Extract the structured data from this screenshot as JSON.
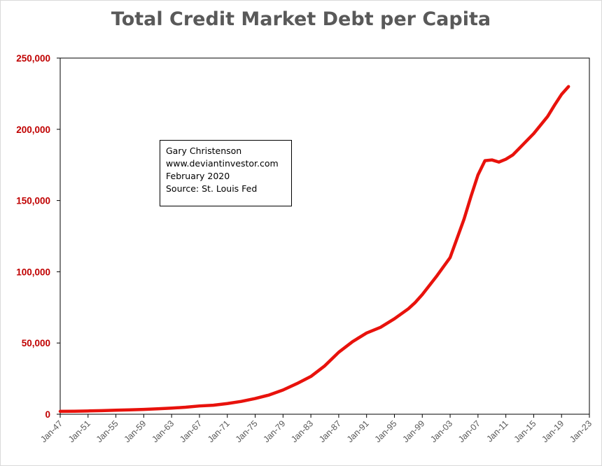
{
  "chart_data": {
    "type": "line",
    "title": "Total Credit Market Debt per Capita",
    "xlabel": "",
    "ylabel": "",
    "ylim": [
      0,
      250000
    ],
    "y_ticks": [
      "0",
      "50,000",
      "100,000",
      "150,000",
      "200,000",
      "250,000"
    ],
    "y_tick_values": [
      0,
      50000,
      100000,
      150000,
      200000,
      250000
    ],
    "x_ticks": [
      "Jan-47",
      "Jan-51",
      "Jan-55",
      "Jan-59",
      "Jan-63",
      "Jan-67",
      "Jan-71",
      "Jan-75",
      "Jan-79",
      "Jan-83",
      "Jan-87",
      "Jan-91",
      "Jan-95",
      "Jan-99",
      "Jan-03",
      "Jan-07",
      "Jan-11",
      "Jan-15",
      "Jan-19",
      "Jan-23"
    ],
    "x_tick_years": [
      1947,
      1951,
      1955,
      1959,
      1963,
      1967,
      1971,
      1975,
      1979,
      1983,
      1987,
      1991,
      1995,
      1999,
      2003,
      2007,
      2011,
      2015,
      2019,
      2023
    ],
    "xlim": [
      1947,
      2023
    ],
    "grid": false,
    "series_color": "#e8120c",
    "tick_label_color_y": "#c00000",
    "tick_label_color_x": "#595959",
    "series": [
      {
        "x": [
          1947,
          1949,
          1951,
          1953,
          1955,
          1957,
          1959,
          1961,
          1963,
          1965,
          1967,
          1969,
          1971,
          1973,
          1975,
          1977,
          1979,
          1981,
          1983,
          1985,
          1987,
          1989,
          1991,
          1993,
          1995,
          1997,
          1998,
          1999,
          2001,
          2003,
          2005,
          2006,
          2007,
          2008,
          2009,
          2010,
          2011,
          2012,
          2013,
          2015,
          2017,
          2018,
          2019,
          2020
        ],
        "y": [
          2000,
          2100,
          2300,
          2500,
          2800,
          3100,
          3400,
          3800,
          4300,
          4900,
          5800,
          6300,
          7500,
          9000,
          11000,
          13500,
          17000,
          21500,
          26500,
          34000,
          43500,
          51000,
          57000,
          61000,
          67000,
          74000,
          78500,
          84000,
          96500,
          110000,
          137000,
          153000,
          168000,
          178000,
          178500,
          177000,
          179000,
          182000,
          187000,
          197000,
          209000,
          217000,
          224500,
          230000
        ]
      }
    ],
    "annotation": {
      "lines": [
        "Gary Christenson",
        "www.deviantinvestor.com",
        "February 2020",
        "Source: St. Louis Fed"
      ]
    }
  }
}
